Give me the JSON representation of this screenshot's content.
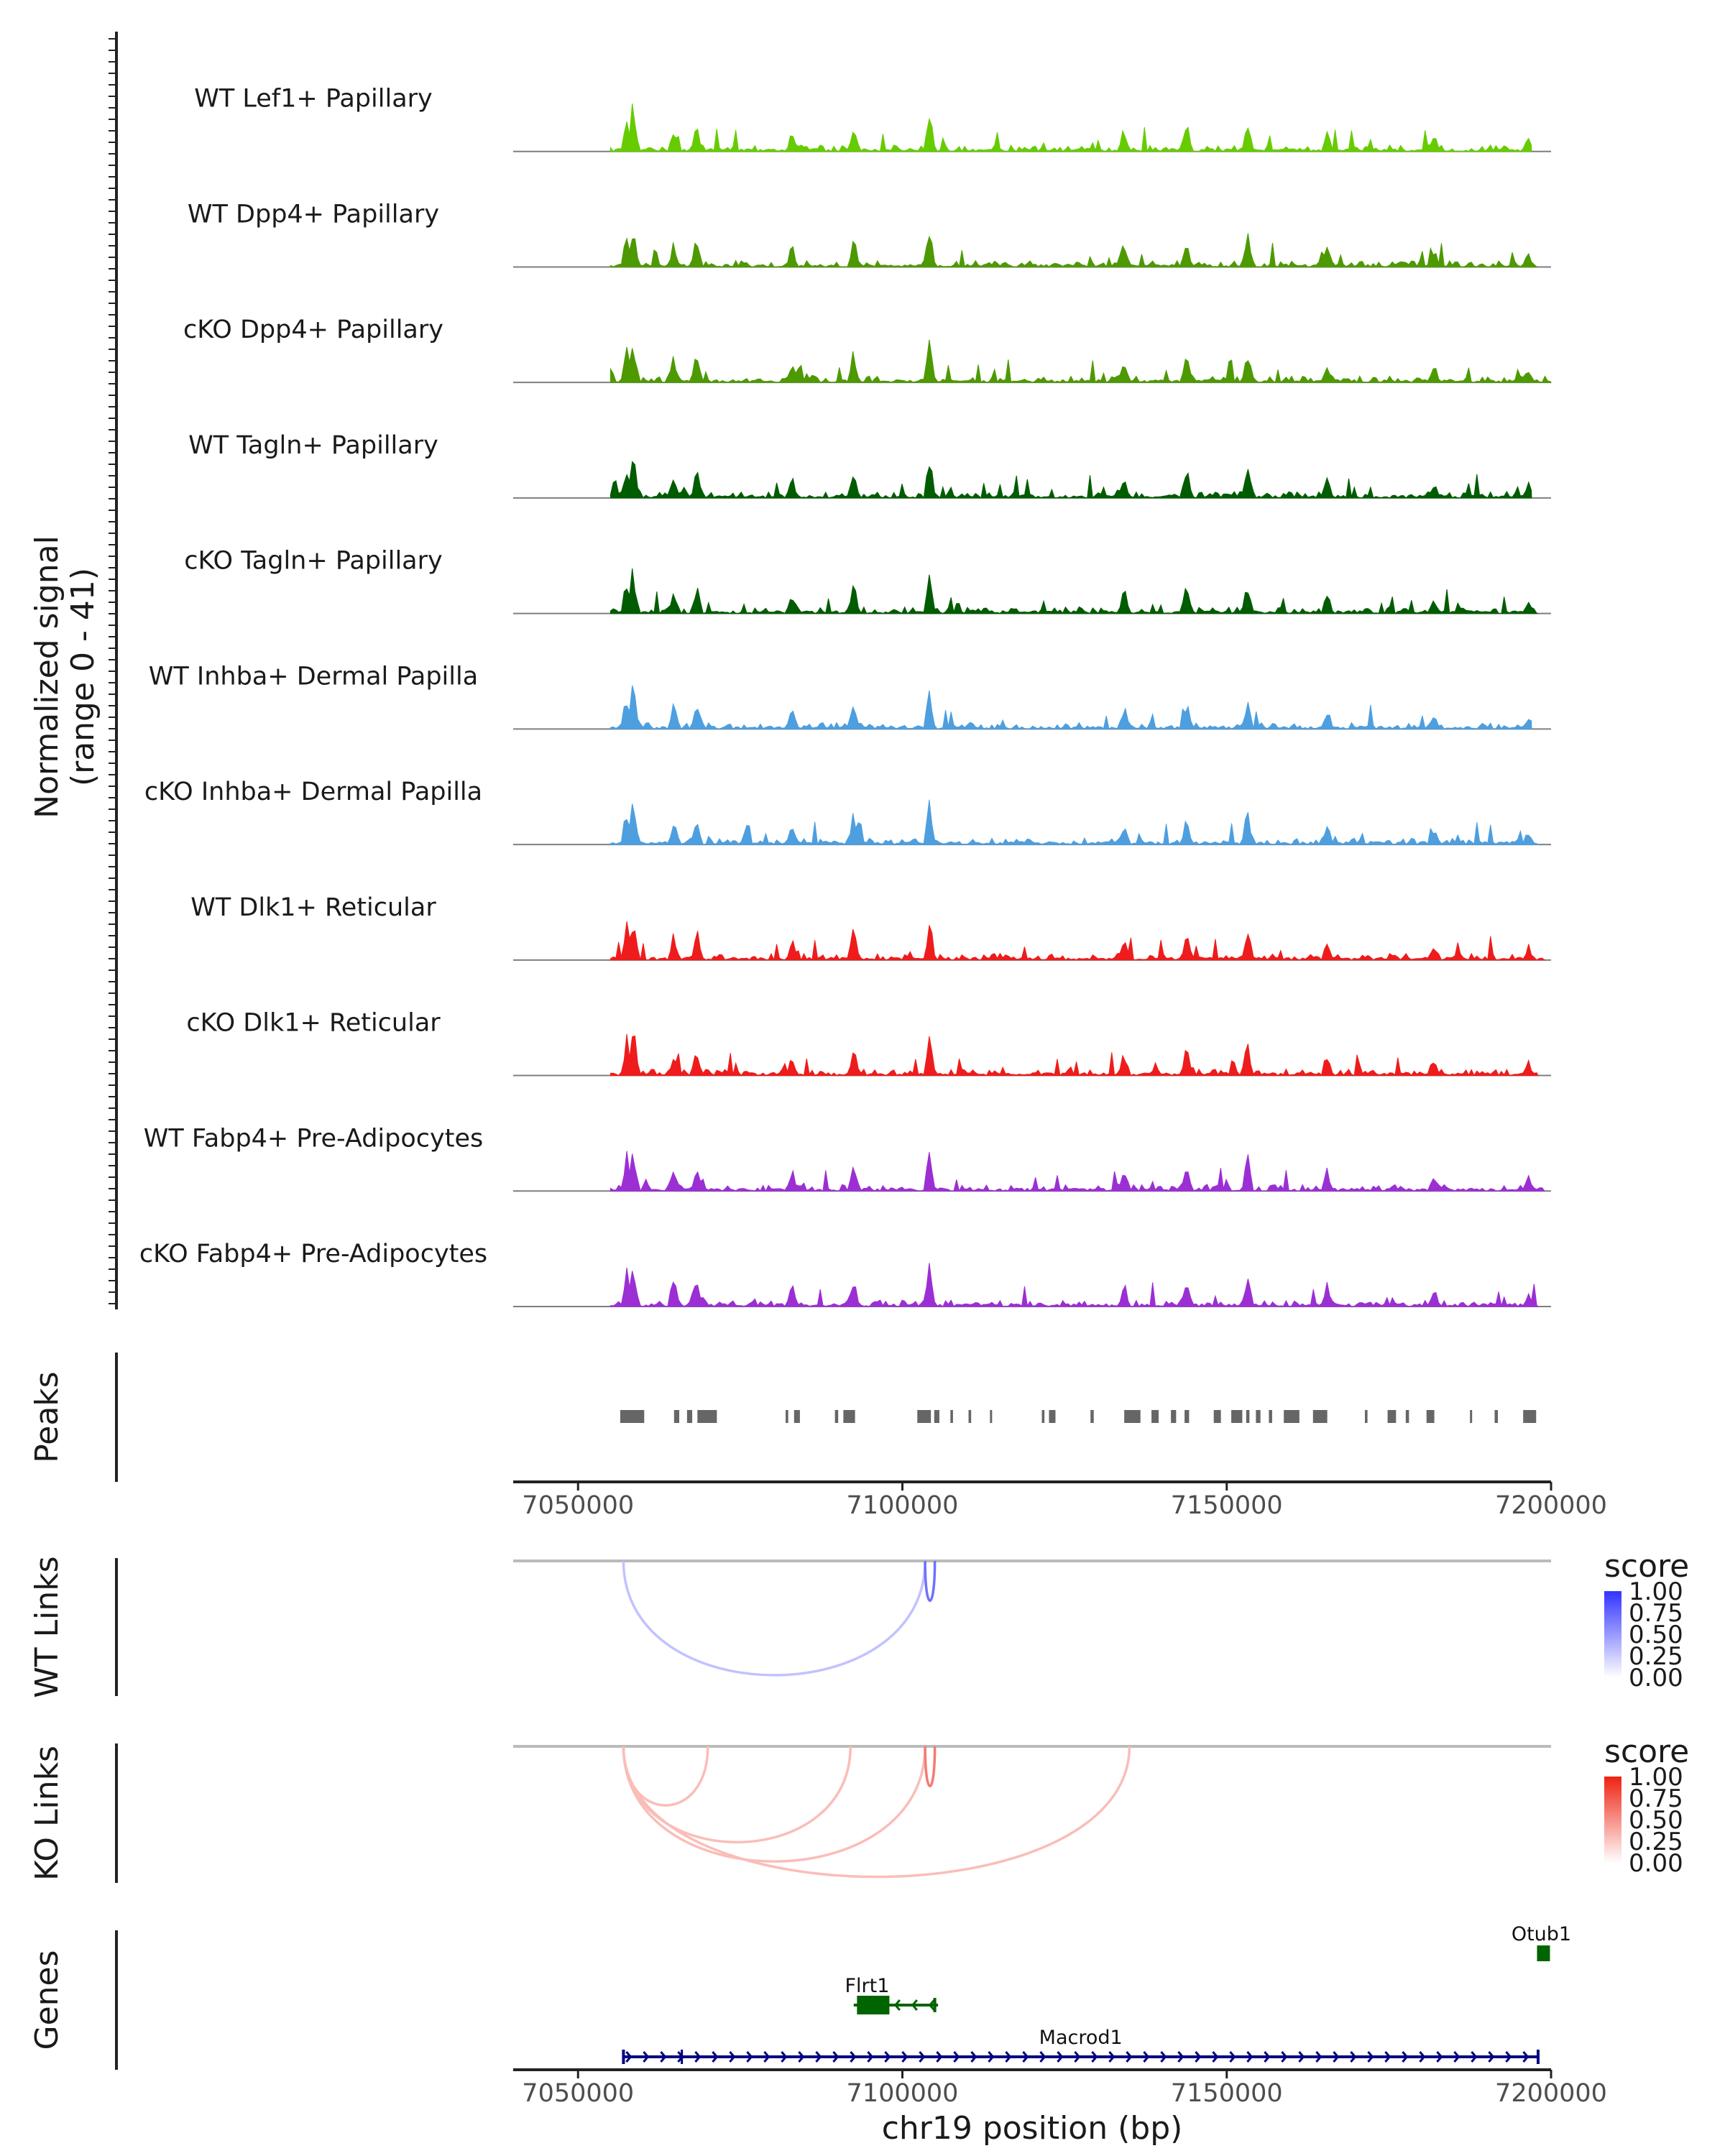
{
  "chart_data": {
    "type": "area",
    "genome_browser": true,
    "x_range": [
      7040000,
      7200000
    ],
    "coverage": {
      "ylabel_line1": "Normalized signal",
      "ylabel_line2": "(range 0 - 41)",
      "range": [
        0,
        41
      ],
      "tracks": [
        {
          "name": "WT Lef1+ Papillary",
          "color": "#66cc00",
          "end": 7197000,
          "seed": 11
        },
        {
          "name": "WT Dpp4+ Papillary",
          "color": "#4d9900",
          "end": 7198000,
          "seed": 12
        },
        {
          "name": "cKO Dpp4+ Papillary",
          "color": "#4d9900",
          "end": 7200000,
          "seed": 13
        },
        {
          "name": "WT Tagln+ Papillary",
          "color": "#005c00",
          "end": 7197000,
          "seed": 14
        },
        {
          "name": "cKO Tagln+ Papillary",
          "color": "#005c00",
          "end": 7198000,
          "seed": 15
        },
        {
          "name": "WT Inhba+ Dermal Papilla",
          "color": "#4d9fe0",
          "end": 7197000,
          "seed": 16
        },
        {
          "name": "cKO Inhba+ Dermal Papilla",
          "color": "#4d9fe0",
          "end": 7198000,
          "seed": 17
        },
        {
          "name": "WT Dlk1+ Reticular",
          "color": "#ee1c1c",
          "end": 7199000,
          "seed": 18
        },
        {
          "name": "cKO Dlk1+ Reticular",
          "color": "#ee1c1c",
          "end": 7198000,
          "seed": 19
        },
        {
          "name": "WT Fabp4+ Pre-Adipocytes",
          "color": "#9b2fd4",
          "end": 7199000,
          "seed": 20
        },
        {
          "name": "cKO Fabp4+ Pre-Adipocytes",
          "color": "#9b2fd4",
          "end": 7198000,
          "seed": 21
        }
      ],
      "major_peaks": [
        [
          7057500,
          0.75
        ],
        [
          7058500,
          1.0
        ],
        [
          7064800,
          0.55
        ],
        [
          7068300,
          0.6
        ],
        [
          7083000,
          0.45
        ],
        [
          7092500,
          0.65
        ],
        [
          7104200,
          0.85
        ],
        [
          7134200,
          0.5
        ],
        [
          7143800,
          0.6
        ],
        [
          7153200,
          0.7
        ],
        [
          7165500,
          0.45
        ],
        [
          7182000,
          0.35
        ],
        [
          7196500,
          0.3
        ]
      ]
    },
    "peaks": {
      "label": "Peaks",
      "regions": [
        [
          7056500,
          7060200
        ],
        [
          7064800,
          7065600
        ],
        [
          7066800,
          7067600
        ],
        [
          7068400,
          7071400
        ],
        [
          7082000,
          7082400
        ],
        [
          7083300,
          7084200
        ],
        [
          7089600,
          7090100
        ],
        [
          7090900,
          7092700
        ],
        [
          7102300,
          7104400
        ],
        [
          7104900,
          7105700
        ],
        [
          7107400,
          7107800
        ],
        [
          7110200,
          7110600
        ],
        [
          7113500,
          7113800
        ],
        [
          7121500,
          7121900
        ],
        [
          7122600,
          7123600
        ],
        [
          7129000,
          7129500
        ],
        [
          7134200,
          7136700
        ],
        [
          7138400,
          7139500
        ],
        [
          7141400,
          7142200
        ],
        [
          7143500,
          7144200
        ],
        [
          7148000,
          7149100
        ],
        [
          7150700,
          7152400
        ],
        [
          7153000,
          7153500
        ],
        [
          7154500,
          7155200
        ],
        [
          7156500,
          7157000
        ],
        [
          7158800,
          7161200
        ],
        [
          7163300,
          7165500
        ],
        [
          7171300,
          7171700
        ],
        [
          7174800,
          7176100
        ],
        [
          7177600,
          7178100
        ],
        [
          7180800,
          7182000
        ],
        [
          7187500,
          7187800
        ],
        [
          7191300,
          7191800
        ],
        [
          7195700,
          7197700
        ]
      ]
    },
    "x_axis": {
      "ticks": [
        7050000,
        7100000,
        7150000,
        7200000
      ],
      "tick_labels": [
        "7050000",
        "7100000",
        "7150000",
        "7200000"
      ],
      "xlabel": "chr19 position (bp)"
    },
    "links": [
      {
        "label": "WT Links",
        "legend_title": "score",
        "legend_ticks": [
          "1.00",
          "0.75",
          "0.50",
          "0.25",
          "0.00"
        ],
        "color_high": "#3333ff",
        "color_low": "#ffffff",
        "arcs": [
          {
            "start": 7057000,
            "end": 7103500,
            "score": 0.3
          },
          {
            "start": 7103500,
            "end": 7105000,
            "score": 0.7
          }
        ]
      },
      {
        "label": "KO Links",
        "legend_title": "score",
        "legend_ticks": [
          "1.00",
          "0.75",
          "0.50",
          "0.25",
          "0.00"
        ],
        "color_high": "#ee2211",
        "color_low": "#ffffff",
        "arcs": [
          {
            "start": 7057000,
            "end": 7070000,
            "score": 0.3
          },
          {
            "start": 7057000,
            "end": 7092000,
            "score": 0.3
          },
          {
            "start": 7057000,
            "end": 7103500,
            "score": 0.3
          },
          {
            "start": 7057000,
            "end": 7135000,
            "score": 0.3
          },
          {
            "start": 7103500,
            "end": 7105000,
            "score": 0.6
          }
        ]
      }
    ],
    "genes": {
      "label": "Genes",
      "items": [
        {
          "name": "Macrod1",
          "start": 7057000,
          "end": 7198000,
          "strand": "+",
          "color": "#000080",
          "row": 3
        },
        {
          "name": "Flrt1",
          "start": 7092500,
          "end": 7105500,
          "strand": "-",
          "color": "#006400",
          "row": 2
        },
        {
          "name": "Otub1",
          "start": 7198500,
          "end": 7200500,
          "strand": "-",
          "color": "#006400",
          "row": 1
        }
      ]
    }
  }
}
